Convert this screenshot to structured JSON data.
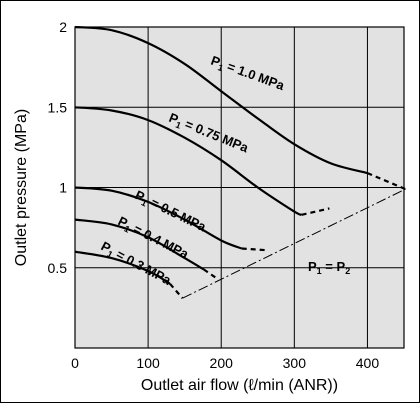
{
  "chart_data": {
    "type": "line",
    "title": "",
    "xlabel": "Outlet air flow (ℓ/min (ANR))",
    "ylabel": "Outlet pressure (MPa)",
    "xlim": [
      0,
      450
    ],
    "ylim": [
      0,
      2
    ],
    "x_ticks": [
      "0",
      "100",
      "200",
      "300",
      "400"
    ],
    "y_ticks": [
      "0.5",
      "1",
      "1.5",
      "2"
    ],
    "grid": true,
    "background": "#e2e2e2",
    "series": [
      {
        "label_prefix": "P",
        "label_sub": "1",
        "label_rest": " = 1.0 MPa",
        "points": [
          [
            0,
            2.0
          ],
          [
            50,
            1.98
          ],
          [
            100,
            1.9
          ],
          [
            150,
            1.77
          ],
          [
            200,
            1.6
          ],
          [
            250,
            1.43
          ],
          [
            300,
            1.27
          ],
          [
            350,
            1.15
          ],
          [
            400,
            1.09
          ]
        ],
        "dashed": [
          [
            400,
            1.09
          ],
          [
            452,
            0.99
          ]
        ]
      },
      {
        "label_prefix": "P",
        "label_sub": "1",
        "label_rest": " = 0.75 MPa",
        "points": [
          [
            0,
            1.5
          ],
          [
            50,
            1.48
          ],
          [
            100,
            1.42
          ],
          [
            150,
            1.31
          ],
          [
            200,
            1.17
          ],
          [
            250,
            1.0
          ],
          [
            300,
            0.85
          ],
          [
            310,
            0.83
          ]
        ],
        "dashed": [
          [
            310,
            0.83
          ],
          [
            348,
            0.87
          ]
        ]
      },
      {
        "label_prefix": "P",
        "label_sub": "1",
        "label_rest": " = 0.5 MPa",
        "points": [
          [
            0,
            1.0
          ],
          [
            50,
            0.98
          ],
          [
            100,
            0.91
          ],
          [
            150,
            0.8
          ],
          [
            200,
            0.67
          ],
          [
            228,
            0.62
          ]
        ],
        "dashed": [
          [
            228,
            0.62
          ],
          [
            260,
            0.61
          ]
        ]
      },
      {
        "label_prefix": "P",
        "label_sub": "1",
        "label_rest": " = 0.4 MPa",
        "points": [
          [
            0,
            0.8
          ],
          [
            50,
            0.77
          ],
          [
            100,
            0.69
          ],
          [
            150,
            0.56
          ],
          [
            176,
            0.49
          ]
        ],
        "dashed": [
          [
            176,
            0.49
          ],
          [
            192,
            0.44
          ]
        ]
      },
      {
        "label_prefix": "P",
        "label_sub": "1",
        "label_rest": " = 0.3 MPa",
        "points": [
          [
            0,
            0.6
          ],
          [
            50,
            0.56
          ],
          [
            100,
            0.48
          ],
          [
            130,
            0.4
          ]
        ],
        "dashed": [
          [
            130,
            0.4
          ],
          [
            147,
            0.31
          ]
        ]
      }
    ],
    "boundary": {
      "label_left": "P",
      "label_sub_left": "1",
      "label_mid": " = P",
      "label_sub_right": "2",
      "points": [
        [
          147,
          0.31
        ],
        [
          452,
          0.99
        ]
      ]
    }
  }
}
